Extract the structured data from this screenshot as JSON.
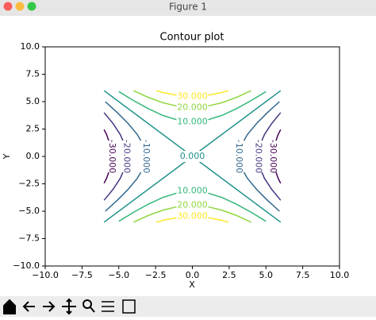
{
  "window": {
    "title": "Figure 1"
  },
  "chart_data": {
    "type": "contour",
    "title": "Contour plot",
    "x_label": "X",
    "y_label": "Y",
    "xlim": [
      -10,
      10
    ],
    "ylim": [
      -10,
      10
    ],
    "xticks": [
      {
        "value": -10,
        "label": "−10.0"
      },
      {
        "value": -7.5,
        "label": "−7.5"
      },
      {
        "value": -5,
        "label": "−5.0"
      },
      {
        "value": -2.5,
        "label": "−2.5"
      },
      {
        "value": 0,
        "label": "0.0"
      },
      {
        "value": 2.5,
        "label": "2.5"
      },
      {
        "value": 5,
        "label": "5.0"
      },
      {
        "value": 7.5,
        "label": "7.5"
      },
      {
        "value": 10,
        "label": "10.0"
      }
    ],
    "yticks": [
      {
        "value": -10,
        "label": "−10.0"
      },
      {
        "value": -7.5,
        "label": "−7.5"
      },
      {
        "value": -5,
        "label": "−5.0"
      },
      {
        "value": -2.5,
        "label": "−2.5"
      },
      {
        "value": 0,
        "label": "0.0"
      },
      {
        "value": 2.5,
        "label": "2.5"
      },
      {
        "value": 5,
        "label": "5.0"
      },
      {
        "value": 7.5,
        "label": "7.5"
      },
      {
        "value": 10,
        "label": "10.0"
      }
    ],
    "levels": [
      {
        "value": -30,
        "label": "-30.000",
        "color": "#440154",
        "lines": [
          {
            "x": [
              6,
              5.83,
              5.57,
              5.48,
              5.57,
              5.83,
              6
            ],
            "y": [
              -2.45,
              -2,
              -1,
              0,
              1,
              2,
              2.45
            ]
          },
          {
            "x": [
              -6,
              -5.83,
              -5.57,
              -5.48,
              -5.57,
              -5.83,
              -6
            ],
            "y": [
              -2.45,
              -2,
              -1,
              0,
              1,
              2,
              2.45
            ]
          }
        ]
      },
      {
        "value": -20,
        "label": "-20.000",
        "color": "#443a83",
        "lines": [
          {
            "x": [
              6,
              5.39,
              4.9,
              4.58,
              4.47,
              4.58,
              4.9,
              5.39,
              6
            ],
            "y": [
              -4,
              -3,
              -2,
              -1,
              0,
              1,
              2,
              3,
              4
            ]
          },
          {
            "x": [
              -6,
              -5.39,
              -4.9,
              -4.58,
              -4.47,
              -4.58,
              -4.9,
              -5.39,
              -6
            ],
            "y": [
              -4,
              -3,
              -2,
              -1,
              0,
              1,
              2,
              3,
              4
            ]
          }
        ]
      },
      {
        "value": -10,
        "label": "-10.000",
        "color": "#31688e",
        "lines": [
          {
            "x": [
              5.92,
              5.1,
              4.36,
              3.74,
              3.32,
              3.16,
              3.32,
              3.74,
              4.36,
              5.1,
              5.92
            ],
            "y": [
              -5,
              -4,
              -3,
              -2,
              -1,
              0,
              1,
              2,
              3,
              4,
              5
            ]
          },
          {
            "x": [
              -5.92,
              -5.1,
              -4.36,
              -3.74,
              -3.32,
              -3.16,
              -3.32,
              -3.74,
              -4.36,
              -5.1,
              -5.92
            ],
            "y": [
              -5,
              -4,
              -3,
              -2,
              -1,
              0,
              1,
              2,
              3,
              4,
              5
            ]
          }
        ]
      },
      {
        "value": 0,
        "label": "0.000",
        "color": "#21918c",
        "lines": [
          {
            "x": [
              -6,
              6
            ],
            "y": [
              -6,
              6
            ]
          },
          {
            "x": [
              -6,
              6
            ],
            "y": [
              6,
              -6
            ]
          }
        ]
      },
      {
        "value": 10,
        "label": "10.000",
        "color": "#35b779",
        "lines": [
          {
            "x": [
              -5,
              -4,
              -3,
              -2,
              -1,
              0,
              1,
              2,
              3,
              4,
              5
            ],
            "y": [
              5.92,
              5.1,
              4.36,
              3.74,
              3.32,
              3.16,
              3.32,
              3.74,
              4.36,
              5.1,
              5.92
            ]
          },
          {
            "x": [
              -5,
              -4,
              -3,
              -2,
              -1,
              0,
              1,
              2,
              3,
              4,
              5
            ],
            "y": [
              -5.92,
              -5.1,
              -4.36,
              -3.74,
              -3.32,
              -3.16,
              -3.32,
              -3.74,
              -4.36,
              -5.1,
              -5.92
            ]
          }
        ]
      },
      {
        "value": 20,
        "label": "20.000",
        "color": "#90d743",
        "lines": [
          {
            "x": [
              -4,
              -3,
              -2,
              -1,
              0,
              1,
              2,
              3,
              4
            ],
            "y": [
              6,
              5.39,
              4.9,
              4.58,
              4.47,
              4.58,
              4.9,
              5.39,
              6
            ]
          },
          {
            "x": [
              -4,
              -3,
              -2,
              -1,
              0,
              1,
              2,
              3,
              4
            ],
            "y": [
              -6,
              -5.39,
              -4.9,
              -4.58,
              -4.47,
              -4.58,
              -4.9,
              -5.39,
              -6
            ]
          }
        ]
      },
      {
        "value": 30,
        "label": "30.000",
        "color": "#fde725",
        "lines": [
          {
            "x": [
              -2.45,
              -2,
              -1,
              0,
              1,
              2,
              2.45
            ],
            "y": [
              6,
              5.83,
              5.57,
              5.48,
              5.57,
              5.83,
              6
            ]
          },
          {
            "x": [
              -2.45,
              -2,
              -1,
              0,
              1,
              2,
              2.45
            ],
            "y": [
              -6,
              -5.83,
              -5.57,
              -5.48,
              -5.57,
              -5.83,
              -6
            ]
          }
        ]
      }
    ]
  }
}
